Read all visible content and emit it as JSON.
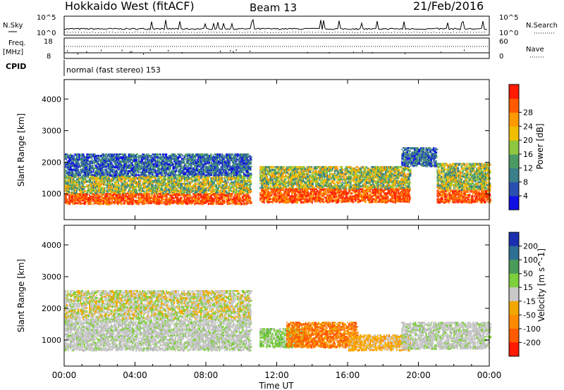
{
  "header": {
    "radar": "Hokkaido West (fitACF)",
    "beam": "Beam 13",
    "date": "21/Feb/2016"
  },
  "top_panels": {
    "nsky_label": "N.Sky",
    "nsky_ticks": [
      "10^5",
      "10^0"
    ],
    "nsearch_label": "N.Search",
    "nsearch_ticks": [
      "10^5",
      "10^0"
    ],
    "freq_label": "Freq.",
    "freq_unit": "[MHz]",
    "freq_ticks": [
      "18",
      "8"
    ],
    "nave_label": "Nave",
    "nave_ticks": [
      "60",
      "0"
    ],
    "cpid_label": "CPID",
    "cpid_text": "normal (fast stereo) 153"
  },
  "chart_data": [
    {
      "type": "heatmap",
      "panel": "power",
      "ylabel": "Slant Range [km]",
      "ylim": [
        180,
        4620
      ],
      "yticks": [
        "1000",
        "2000",
        "3000",
        "4000"
      ],
      "xlim": [
        0,
        24
      ],
      "colorbar_label": "Power [dB]",
      "colorbar_ticks": [
        "4",
        "8",
        "12",
        "16",
        "20",
        "24",
        "28"
      ],
      "colorbar_colors": [
        "#1010e6",
        "#2a4fb0",
        "#3a7f8a",
        "#4c9a63",
        "#8ec63f",
        "#f0c000",
        "#ff9a00",
        "#ff5a00",
        "#ff1a00"
      ],
      "bands": [
        {
          "t0": 0.0,
          "t1": 10.5,
          "r0": 700,
          "r1": 1050,
          "level": "high"
        },
        {
          "t0": 0.0,
          "t1": 10.5,
          "r0": 1050,
          "r1": 1600,
          "level": "mid"
        },
        {
          "t0": 0.0,
          "t1": 10.5,
          "r0": 1600,
          "r1": 2300,
          "level": "low"
        },
        {
          "t0": 11.0,
          "t1": 19.5,
          "r0": 750,
          "r1": 1200,
          "level": "high"
        },
        {
          "t0": 11.0,
          "t1": 19.5,
          "r0": 1200,
          "r1": 1900,
          "level": "mid"
        },
        {
          "t0": 19.0,
          "t1": 21.0,
          "r0": 1900,
          "r1": 2500,
          "level": "low"
        },
        {
          "t0": 21.0,
          "t1": 24.0,
          "r0": 750,
          "r1": 1150,
          "level": "high"
        },
        {
          "t0": 21.0,
          "t1": 24.0,
          "r0": 1150,
          "r1": 2000,
          "level": "mid"
        }
      ]
    },
    {
      "type": "heatmap",
      "panel": "velocity",
      "ylabel": "Slant Range [km]",
      "ylim": [
        180,
        4620
      ],
      "yticks": [
        "1000",
        "2000",
        "3000",
        "4000"
      ],
      "xlim": [
        0,
        24
      ],
      "xlabel": "Time UT",
      "xticks": [
        "00:00",
        "04:00",
        "08:00",
        "12:00",
        "16:00",
        "20:00",
        "00:00"
      ],
      "colorbar_label": "Velocity [m s^-1]",
      "colorbar_ticks": [
        "200",
        "100",
        "50",
        "15",
        "-15",
        "-50",
        "-100",
        "-200"
      ],
      "colorbar_colors": [
        "#1a2fb0",
        "#2e6f94",
        "#4a9a5a",
        "#7ecf3c",
        "#c8c8c8",
        "#f0a800",
        "#ff8a00",
        "#ff5a00",
        "#ff1a00"
      ],
      "bands": [
        {
          "t0": 0.0,
          "t1": 10.5,
          "r0": 700,
          "r1": 1700,
          "level": "grey"
        },
        {
          "t0": 0.0,
          "t1": 10.5,
          "r0": 1700,
          "r1": 2600,
          "level": "grey-sparse"
        },
        {
          "t0": 11.0,
          "t1": 13.5,
          "r0": 800,
          "r1": 1400,
          "level": "green"
        },
        {
          "t0": 12.5,
          "t1": 16.5,
          "r0": 800,
          "r1": 1600,
          "level": "orange"
        },
        {
          "t0": 16.0,
          "t1": 19.5,
          "r0": 700,
          "r1": 1200,
          "level": "light-orange"
        },
        {
          "t0": 19.0,
          "t1": 24.0,
          "r0": 750,
          "r1": 1600,
          "level": "grey"
        }
      ]
    }
  ]
}
